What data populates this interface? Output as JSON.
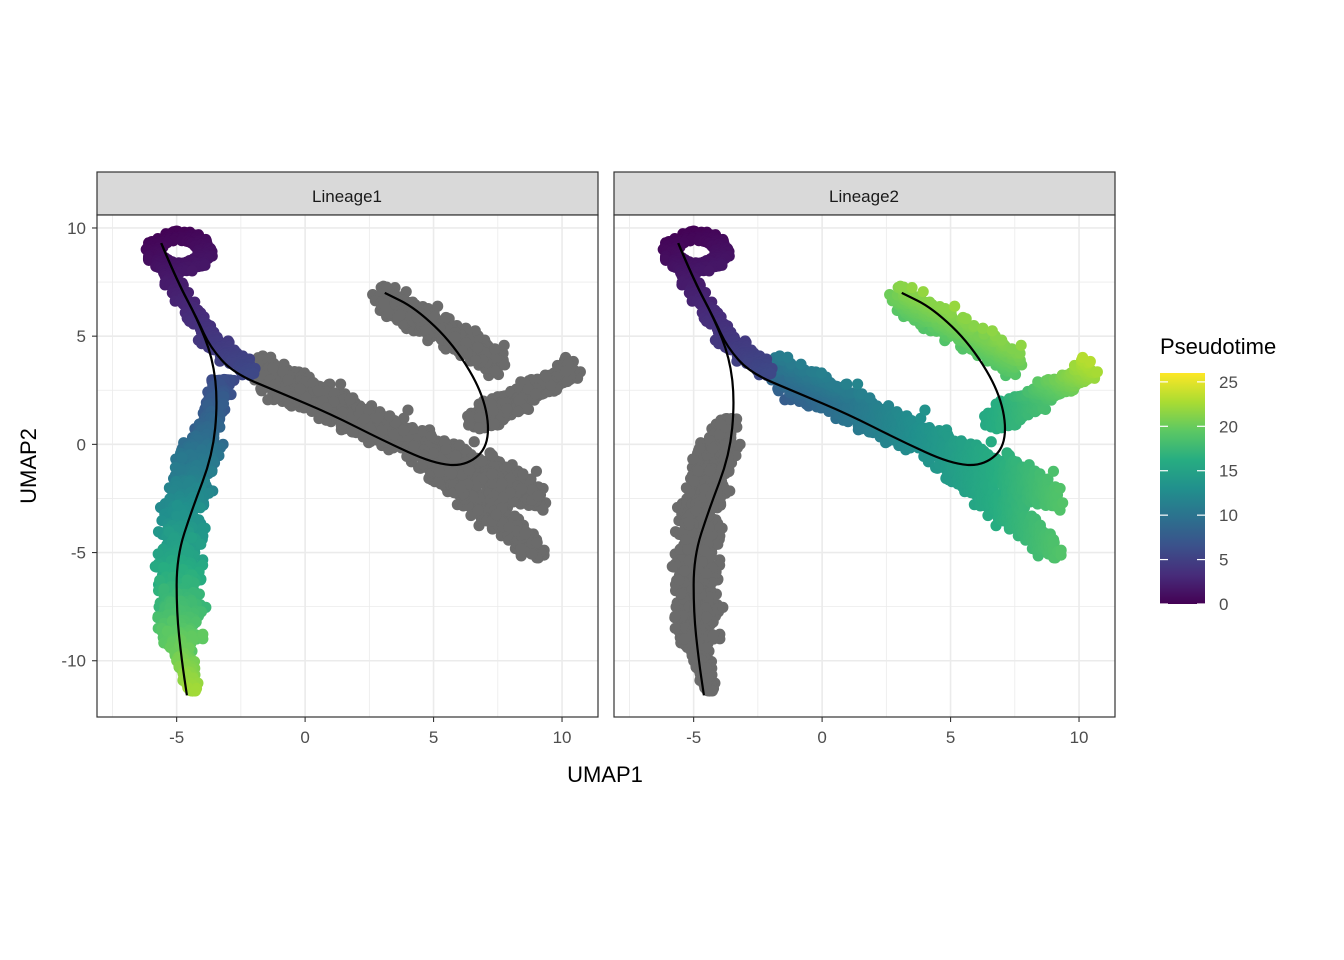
{
  "chart_data": {
    "type": "scatter",
    "xlabel": "UMAP1",
    "ylabel": "UMAP2",
    "xlim": [
      -8.1,
      11.4
    ],
    "ylim": [
      -12.6,
      10.6
    ],
    "x_ticks": [
      -5,
      0,
      5,
      10
    ],
    "y_ticks": [
      -10,
      -5,
      0,
      5,
      10
    ],
    "grid": true,
    "legend": {
      "title": "Pseudotime",
      "position": "right",
      "min": 0,
      "max": 26,
      "ticks": [
        0,
        5,
        10,
        15,
        20,
        25
      ],
      "colors": [
        "#440154",
        "#472c7a",
        "#3b518b",
        "#2c718e",
        "#21908d",
        "#27ad81",
        "#5cc863",
        "#aadc32",
        "#fde725"
      ],
      "na_color": "#6b6b6b"
    },
    "panels": [
      {
        "label": "Lineage1",
        "colored_regions": [
          {
            "branch": "top",
            "x_range": [
              -6.5,
              -2.0
            ],
            "y_range": [
              2.5,
              9.8
            ],
            "pseudotime_range": [
              0,
              6
            ]
          },
          {
            "branch": "bottom",
            "x_range": [
              -7.0,
              -2.6
            ],
            "y_range": [
              -11.6,
              2.5
            ],
            "pseudotime_range": [
              6,
              22
            ]
          }
        ],
        "gray_regions": [
          {
            "branch": "right",
            "x_range": [
              -2.2,
              10.6
            ],
            "y_range": [
              -5.2,
              7.5
            ]
          }
        ],
        "curve": [
          [
            -5.6,
            9.3
          ],
          [
            -5.0,
            7.6
          ],
          [
            -4.2,
            5.8
          ],
          [
            -3.7,
            4.5
          ],
          [
            -2.8,
            3.3
          ],
          [
            -1.0,
            2.4
          ],
          [
            1.0,
            1.4
          ],
          [
            3.0,
            0.2
          ],
          [
            5.0,
            -0.9
          ],
          [
            6.3,
            -1.0
          ],
          [
            7.2,
            0.0
          ],
          [
            7.0,
            2.2
          ],
          [
            5.8,
            4.6
          ],
          [
            4.3,
            6.3
          ],
          [
            3.1,
            7.0
          ]
        ],
        "curve2": [
          [
            -5.6,
            9.3
          ],
          [
            -5.0,
            7.6
          ],
          [
            -4.2,
            5.8
          ],
          [
            -3.6,
            4.0
          ],
          [
            -3.4,
            2.0
          ],
          [
            -3.6,
            -0.5
          ],
          [
            -4.4,
            -3.0
          ],
          [
            -5.0,
            -5.2
          ],
          [
            -5.0,
            -7.8
          ],
          [
            -4.8,
            -10.0
          ],
          [
            -4.6,
            -11.6
          ]
        ]
      },
      {
        "label": "Lineage2",
        "colored_regions": [
          {
            "branch": "top",
            "x_range": [
              -6.5,
              -2.0
            ],
            "y_range": [
              2.5,
              9.8
            ],
            "pseudotime_range": [
              0,
              6
            ]
          },
          {
            "branch": "middle",
            "x_range": [
              -3.0,
              5.5
            ],
            "y_range": [
              -2.0,
              4.5
            ],
            "pseudotime_range": [
              6,
              15
            ]
          },
          {
            "branch": "right",
            "x_range": [
              3.5,
              10.6
            ],
            "y_range": [
              -5.2,
              7.5
            ],
            "pseudotime_range": [
              15,
              26
            ]
          }
        ],
        "gray_regions": [
          {
            "branch": "bottom",
            "x_range": [
              -7.0,
              -2.6
            ],
            "y_range": [
              -11.6,
              1.2
            ]
          }
        ],
        "curve": [
          [
            -5.6,
            9.3
          ],
          [
            -5.0,
            7.6
          ],
          [
            -4.2,
            5.8
          ],
          [
            -3.7,
            4.5
          ],
          [
            -2.8,
            3.3
          ],
          [
            -1.0,
            2.4
          ],
          [
            1.0,
            1.4
          ],
          [
            3.0,
            0.2
          ],
          [
            5.0,
            -0.9
          ],
          [
            6.3,
            -1.0
          ],
          [
            7.2,
            0.0
          ],
          [
            7.0,
            2.2
          ],
          [
            5.8,
            4.6
          ],
          [
            4.3,
            6.3
          ],
          [
            3.1,
            7.0
          ]
        ],
        "curve2": [
          [
            -5.6,
            9.3
          ],
          [
            -5.0,
            7.6
          ],
          [
            -4.2,
            5.8
          ],
          [
            -3.6,
            4.0
          ],
          [
            -3.4,
            2.0
          ],
          [
            -3.6,
            -0.5
          ],
          [
            -4.4,
            -3.0
          ],
          [
            -5.0,
            -5.2
          ],
          [
            -5.0,
            -7.8
          ],
          [
            -4.8,
            -10.0
          ],
          [
            -4.6,
            -11.6
          ]
        ]
      }
    ]
  }
}
